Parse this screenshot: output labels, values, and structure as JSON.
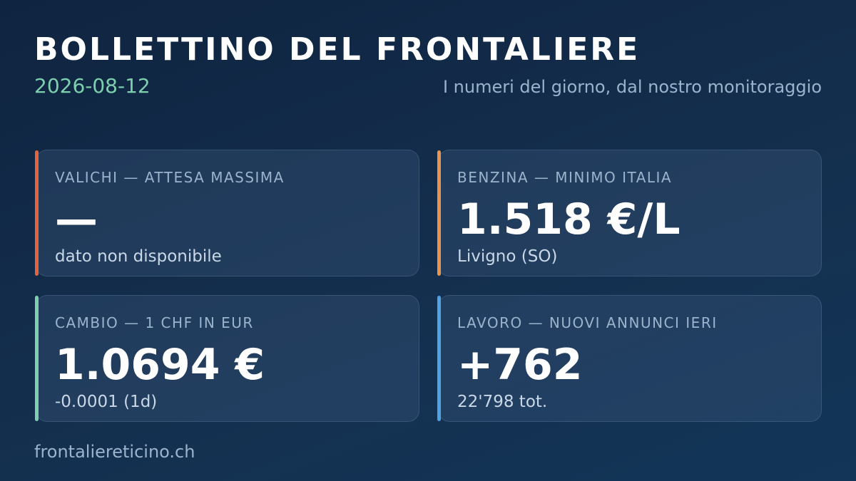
{
  "header": {
    "title": "BOLLETTINO DEL FRONTALIERE",
    "date": "2026-08-12",
    "subtitle": "I numeri del giorno, dal nostro monitoraggio"
  },
  "cards": [
    {
      "label": "VALICHI — ATTESA MASSIMA",
      "value": "—",
      "note": "dato non disponibile"
    },
    {
      "label": "BENZINA — MINIMO ITALIA",
      "value": "1.518 €/L",
      "note": "Livigno (SO)"
    },
    {
      "label": "CAMBIO — 1 CHF IN EUR",
      "value": "1.0694 €",
      "note": "-0.0001 (1d)"
    },
    {
      "label": "LAVORO — NUOVI ANNUNCI IERI",
      "value": "+762",
      "note": "22'798 tot."
    }
  ],
  "footer": {
    "site": "frontaliereticino.ch"
  }
}
